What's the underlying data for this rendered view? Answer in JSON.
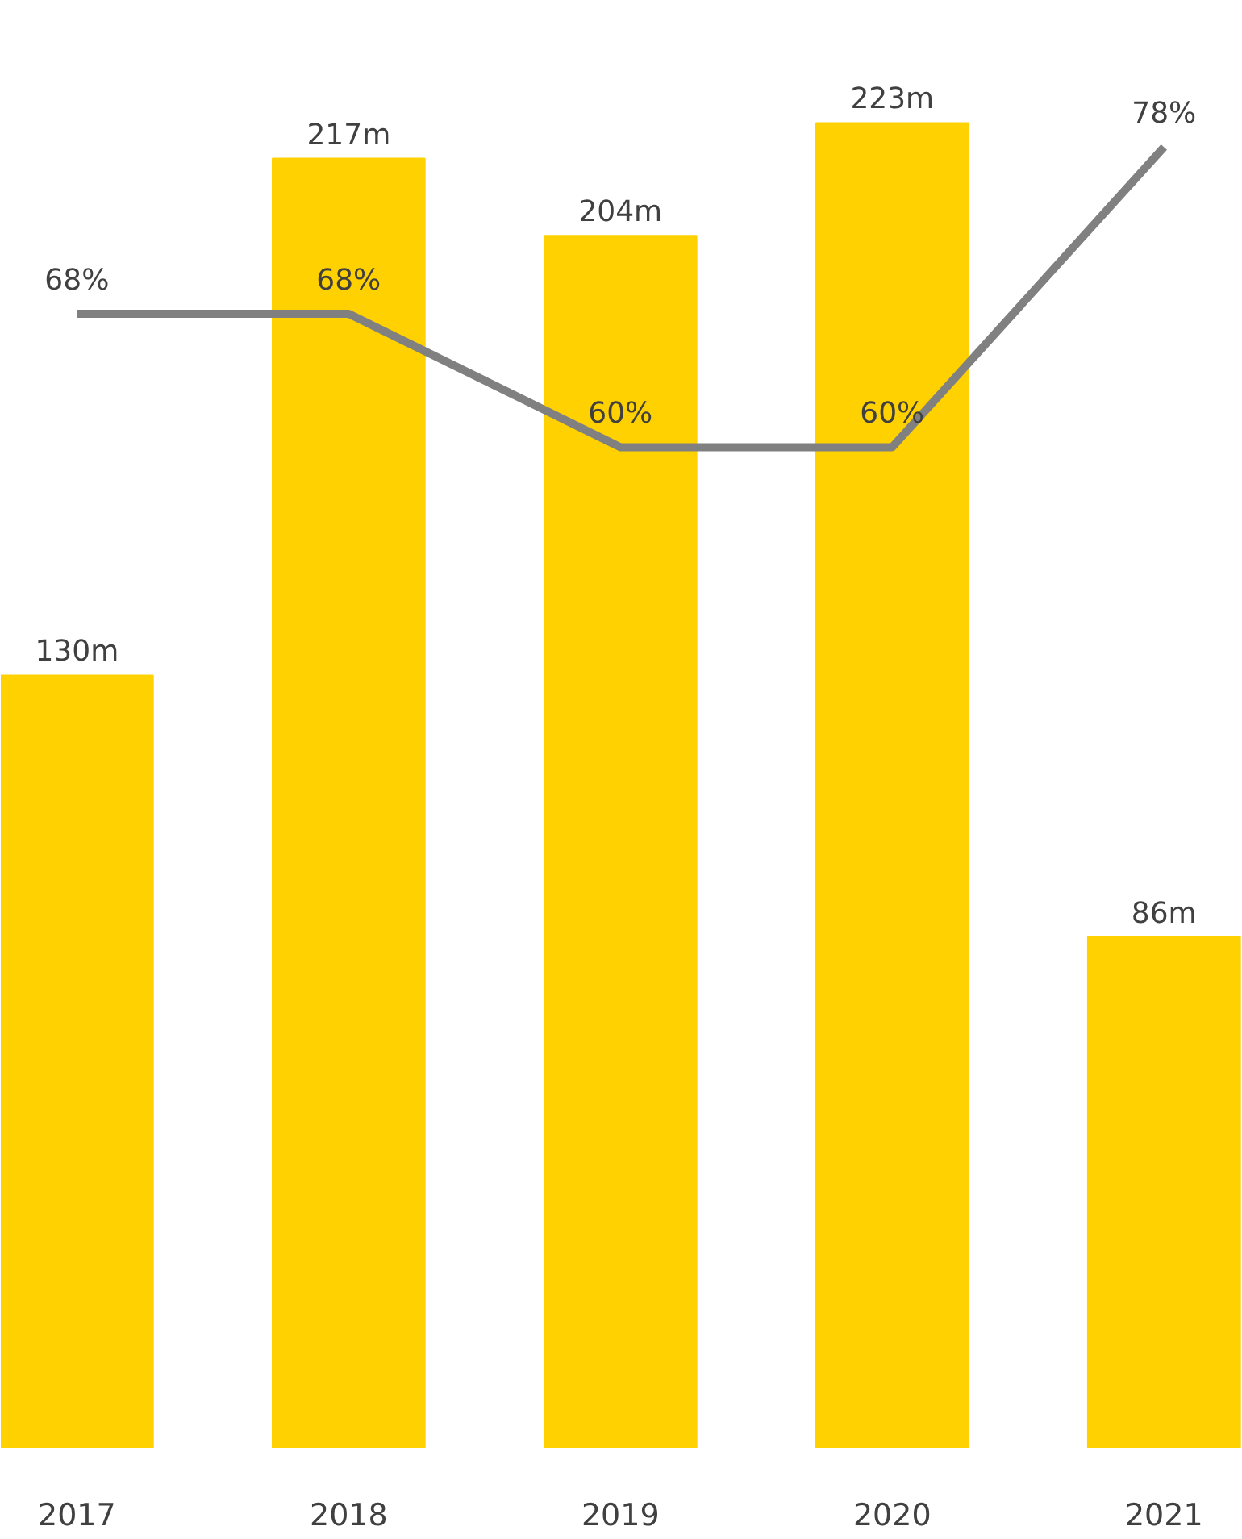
{
  "chart_data": {
    "type": "bar",
    "categories": [
      "2017",
      "2018",
      "2019",
      "2020",
      "2021"
    ],
    "series": [
      {
        "color": "#ffd100",
        "values": [
          130,
          217,
          204,
          223,
          86
        ],
        "value_labels": [
          "130m",
          "217m",
          "204m",
          "223m",
          "86m"
        ]
      },
      {
        "type": "line",
        "axis": "y2",
        "color": "#808080",
        "values": [
          68,
          68,
          60,
          60,
          78
        ],
        "value_labels": [
          "68%",
          "68%",
          "60%",
          "60%",
          "78%"
        ]
      }
    ],
    "tick_labels": "x",
    "grid": false,
    "marker": "none",
    "line_style": "solid"
  }
}
